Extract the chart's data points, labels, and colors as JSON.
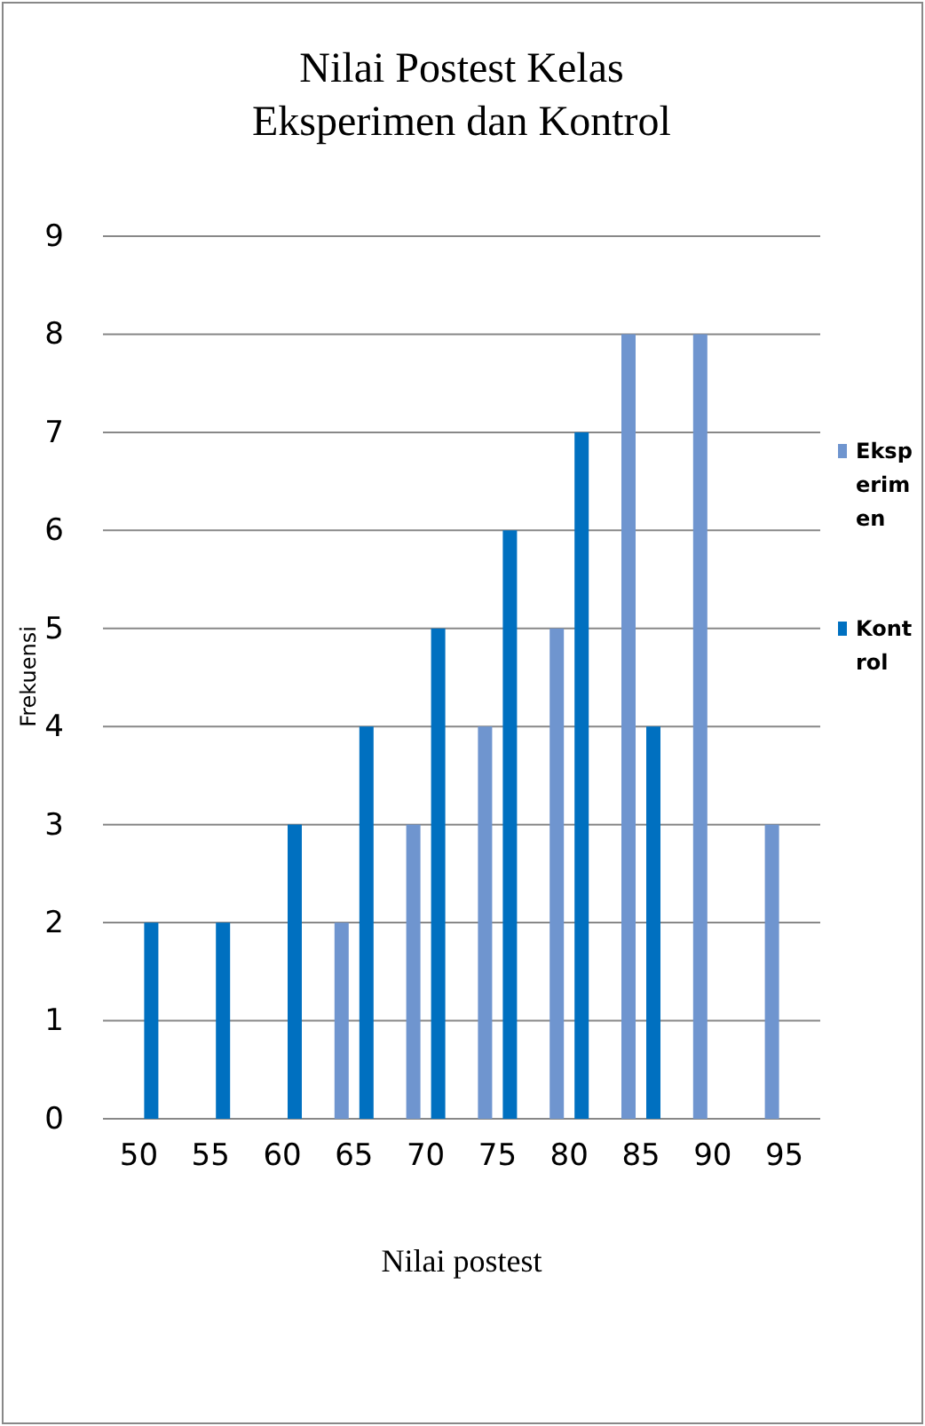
{
  "chart_data": {
    "type": "bar",
    "title": "Nilai Postest Kelas Eksperimen dan Kontrol",
    "xlabel": "Nilai postest",
    "ylabel": "Frekuensi",
    "categories": [
      "50",
      "55",
      "60",
      "65",
      "70",
      "75",
      "80",
      "85",
      "90",
      "95"
    ],
    "series": [
      {
        "name": "Eksperimen",
        "color": "#6f95cf",
        "values": [
          0,
          0,
          0,
          2,
          3,
          4,
          5,
          8,
          8,
          3
        ]
      },
      {
        "name": "Kontrol",
        "color": "#0070c0",
        "values": [
          2,
          2,
          3,
          4,
          5,
          6,
          7,
          4,
          0,
          0
        ]
      }
    ],
    "ylim": [
      0,
      9
    ],
    "yticks": [
      0,
      1,
      2,
      3,
      4,
      5,
      6,
      7,
      8,
      9
    ],
    "grid": "y",
    "legend": "right"
  }
}
